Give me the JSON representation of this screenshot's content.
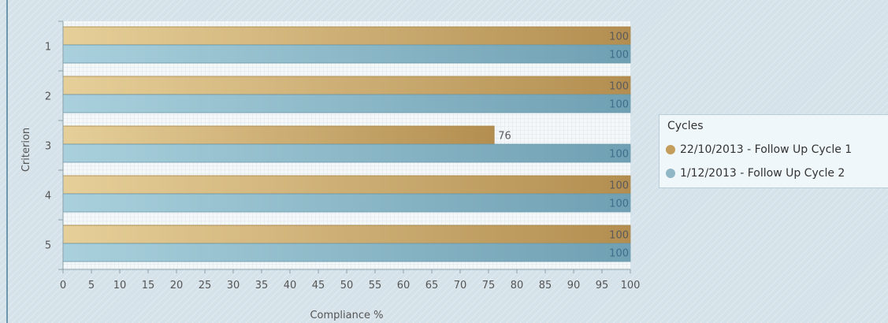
{
  "chart_data": {
    "type": "bar",
    "orientation": "horizontal",
    "categories": [
      "1",
      "2",
      "3",
      "4",
      "5"
    ],
    "series": [
      {
        "name": "22/10/2013 - Follow Up Cycle 1",
        "values": [
          100,
          100,
          76,
          100,
          100
        ],
        "color": "#c9a66b"
      },
      {
        "name": "1/12/2013 - Follow Up Cycle 2",
        "values": [
          100,
          100,
          100,
          100,
          100
        ],
        "color": "#8fb7c6"
      }
    ],
    "xlabel": "Compliance %",
    "ylabel": "Criterion",
    "xlim": [
      0,
      100
    ],
    "xticks": [
      0,
      5,
      10,
      15,
      20,
      25,
      30,
      35,
      40,
      45,
      50,
      55,
      60,
      65,
      70,
      75,
      80,
      85,
      90,
      95,
      100
    ],
    "data_labels": true,
    "grid": true,
    "legend": {
      "title": "Cycles",
      "position": "right"
    }
  }
}
